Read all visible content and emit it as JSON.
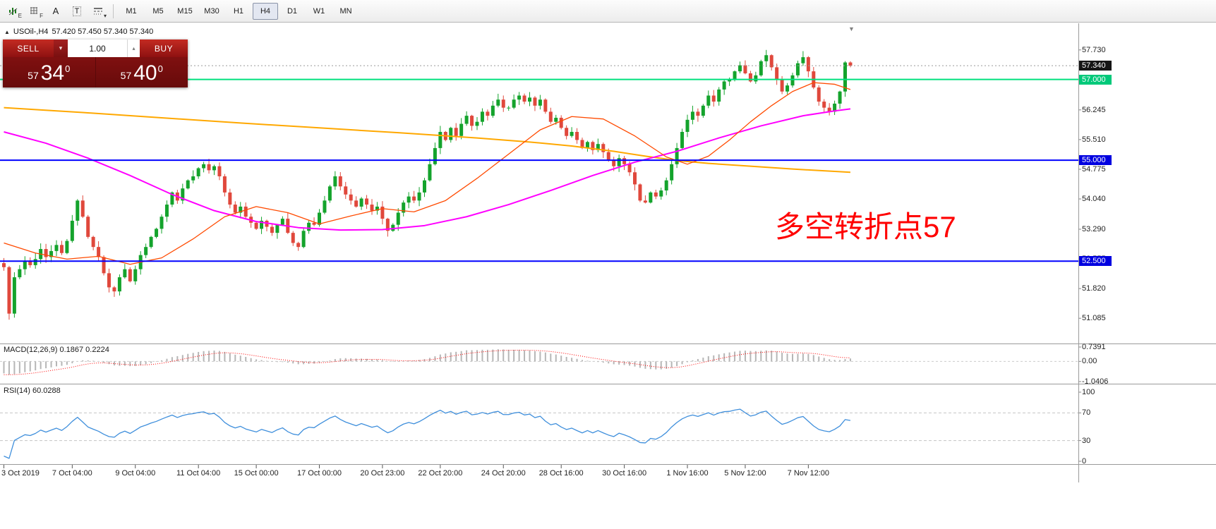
{
  "toolbar": {
    "tools": [
      {
        "name": "chart-objects-tool",
        "kind": "chart",
        "sub": "E"
      },
      {
        "name": "grid-tool",
        "kind": "grid",
        "sub": "F"
      },
      {
        "name": "text-tool",
        "kind": "letter",
        "sub": "A"
      },
      {
        "name": "text-label-tool",
        "kind": "letter-box",
        "sub": "T"
      },
      {
        "name": "line-style-tool",
        "kind": "lines",
        "sub": "▾"
      }
    ],
    "timeframes": [
      {
        "label": "M1"
      },
      {
        "label": "M5"
      },
      {
        "label": "M15"
      },
      {
        "label": "M30"
      },
      {
        "label": "H1"
      },
      {
        "label": "H4"
      },
      {
        "label": "D1"
      },
      {
        "label": "W1"
      },
      {
        "label": "MN"
      }
    ],
    "active_timeframe": "H4"
  },
  "symbol_header": {
    "toggle_icon": "▲",
    "symbol": "USOil-,H4",
    "ohlc": "57.420 57.450 57.340 57.340"
  },
  "trade_panel": {
    "sell_label": "SELL",
    "buy_label": "BUY",
    "volume": "1.00",
    "dropdown_icon": "▾",
    "spinner_icon": "▴",
    "sell_price": {
      "small": "57",
      "big": "34",
      "sup": "0"
    },
    "buy_price": {
      "small": "57",
      "big": "40",
      "sup": "0"
    }
  },
  "annotation": {
    "text": "多空转折点57",
    "color": "#ff0000"
  },
  "chart_overlay": {
    "scroll_marker": "▼"
  },
  "macd_panel": {
    "label": "MACD(12,26,9) 0.1867 0.2224",
    "axis_labels": [
      "0.7391",
      "0.00",
      "-1.0406"
    ]
  },
  "rsi_panel": {
    "label": "RSI(14) 60.0288",
    "axis_labels": [
      "100",
      "70",
      "30",
      "0"
    ]
  },
  "price_scale": {
    "badges": [
      {
        "label": "57.340",
        "value": 57.34,
        "bg": "#151515",
        "type": "last-price"
      },
      {
        "label": "57.000",
        "value": 57.0,
        "bg": "#00c97a",
        "type": "hline-green"
      },
      {
        "label": "55.000",
        "value": 55.0,
        "bg": "#0000e0",
        "type": "hline-blue"
      },
      {
        "label": "52.500",
        "value": 52.5,
        "bg": "#0000e0",
        "type": "hline-blue"
      }
    ]
  },
  "chart_data": {
    "type": "candlestick",
    "symbol": "USOil-",
    "timeframe": "H4",
    "current_bar_ohlc": {
      "open": 57.42,
      "high": 57.45,
      "low": 57.34,
      "close": 57.34
    },
    "y_range": [
      50.46,
      58.39
    ],
    "price_ticks": [
      57.73,
      56.245,
      55.51,
      54.775,
      54.04,
      53.29,
      52.555,
      51.82,
      51.085
    ],
    "closes": [
      52.35,
      51.2,
      52.1,
      52.3,
      52.5,
      52.4,
      52.55,
      52.8,
      52.6,
      52.75,
      52.9,
      52.7,
      53.0,
      53.5,
      54.0,
      53.6,
      53.1,
      52.85,
      52.6,
      52.2,
      51.85,
      51.75,
      52.1,
      52.3,
      52.0,
      52.3,
      52.65,
      52.85,
      53.1,
      53.3,
      53.6,
      53.9,
      54.2,
      54.0,
      54.3,
      54.5,
      54.6,
      54.8,
      54.9,
      54.75,
      54.85,
      54.6,
      54.2,
      53.9,
      53.7,
      53.85,
      53.6,
      53.45,
      53.3,
      53.5,
      53.35,
      53.2,
      53.4,
      53.55,
      53.2,
      52.95,
      52.85,
      53.25,
      53.45,
      53.4,
      53.7,
      54.0,
      54.35,
      54.6,
      54.35,
      54.15,
      54.0,
      53.85,
      54.05,
      53.9,
      53.75,
      53.85,
      53.55,
      53.25,
      53.4,
      53.7,
      53.95,
      54.1,
      54.0,
      54.2,
      54.5,
      54.9,
      55.3,
      55.7,
      55.5,
      55.8,
      55.6,
      55.9,
      56.1,
      55.85,
      55.95,
      56.2,
      56.1,
      56.35,
      56.5,
      56.3,
      56.3,
      56.5,
      56.6,
      56.45,
      56.55,
      56.35,
      56.5,
      56.2,
      55.95,
      56.05,
      55.8,
      55.6,
      55.7,
      55.5,
      55.3,
      55.45,
      55.25,
      55.4,
      55.2,
      55.0,
      54.85,
      55.05,
      54.9,
      54.7,
      54.4,
      54.0,
      53.95,
      54.2,
      54.1,
      54.25,
      54.5,
      54.9,
      55.3,
      55.7,
      56.0,
      56.2,
      56.1,
      56.35,
      56.6,
      56.45,
      56.75,
      56.95,
      57.0,
      57.2,
      57.35,
      57.15,
      56.95,
      57.1,
      57.45,
      57.6,
      57.3,
      57.0,
      56.7,
      56.85,
      57.1,
      57.4,
      57.55,
      57.2,
      56.8,
      56.45,
      56.3,
      56.2,
      56.4,
      56.7,
      57.42,
      57.34
    ],
    "prehistory_closes": [
      56.1,
      55.9,
      55.7,
      55.45,
      55.2,
      55.0,
      54.75,
      54.5,
      54.3,
      54.1,
      53.9,
      53.7,
      53.55,
      53.4,
      53.3,
      53.15,
      53.05,
      52.95,
      52.85,
      52.75,
      52.7,
      52.6,
      52.55,
      52.5,
      52.45,
      52.5,
      52.55,
      52.45,
      52.4,
      52.45
    ],
    "wick_overrides": {
      "1": {
        "low": 51.05
      },
      "2": {
        "low": 51.1
      },
      "145": {
        "high": 57.73
      },
      "152": {
        "high": 57.7
      },
      "161": {
        "high": 57.45,
        "low": 57.3
      }
    },
    "hlines": [
      {
        "value": 57.34,
        "color": "#999999",
        "style": "dotted",
        "name": "last-price-line"
      },
      {
        "value": 57.0,
        "color": "#00e07e",
        "style": "solid",
        "name": "green-level-57"
      },
      {
        "value": 55.0,
        "color": "#0000ff",
        "style": "solid",
        "name": "blue-level-55"
      },
      {
        "value": 52.5,
        "color": "#0000ff",
        "style": "solid",
        "name": "blue-level-52-5"
      }
    ],
    "ma_lines": [
      {
        "name": "ma-slow-orange",
        "color": "#ffa800",
        "width": 2,
        "points": [
          [
            0,
            56.3
          ],
          [
            15,
            56.18
          ],
          [
            30,
            56.05
          ],
          [
            45,
            55.92
          ],
          [
            60,
            55.8
          ],
          [
            75,
            55.68
          ],
          [
            90,
            55.55
          ],
          [
            100,
            55.45
          ],
          [
            108,
            55.35
          ],
          [
            116,
            55.22
          ],
          [
            122,
            55.1
          ],
          [
            128,
            54.99
          ],
          [
            134,
            54.92
          ],
          [
            142,
            54.85
          ],
          [
            150,
            54.78
          ],
          [
            161,
            54.7
          ]
        ]
      },
      {
        "name": "ma-mid-magenta",
        "color": "#ff00ff",
        "width": 2,
        "points": [
          [
            0,
            55.7
          ],
          [
            8,
            55.42
          ],
          [
            16,
            55.05
          ],
          [
            24,
            54.62
          ],
          [
            32,
            54.15
          ],
          [
            40,
            53.75
          ],
          [
            48,
            53.48
          ],
          [
            56,
            53.33
          ],
          [
            64,
            53.27
          ],
          [
            72,
            53.28
          ],
          [
            80,
            53.38
          ],
          [
            88,
            53.6
          ],
          [
            96,
            53.9
          ],
          [
            104,
            54.25
          ],
          [
            112,
            54.62
          ],
          [
            120,
            54.95
          ],
          [
            128,
            55.22
          ],
          [
            136,
            55.55
          ],
          [
            144,
            55.85
          ],
          [
            152,
            56.1
          ],
          [
            158,
            56.22
          ],
          [
            161,
            56.27
          ]
        ]
      },
      {
        "name": "ma-fast-red",
        "color": "#ff4a00",
        "width": 1.3,
        "points": [
          [
            0,
            52.95
          ],
          [
            6,
            52.7
          ],
          [
            12,
            52.55
          ],
          [
            18,
            52.62
          ],
          [
            24,
            52.42
          ],
          [
            30,
            52.58
          ],
          [
            36,
            53.05
          ],
          [
            42,
            53.6
          ],
          [
            48,
            53.85
          ],
          [
            54,
            53.7
          ],
          [
            60,
            53.42
          ],
          [
            66,
            53.62
          ],
          [
            72,
            53.8
          ],
          [
            78,
            53.72
          ],
          [
            84,
            54.0
          ],
          [
            90,
            54.55
          ],
          [
            96,
            55.15
          ],
          [
            102,
            55.75
          ],
          [
            108,
            56.08
          ],
          [
            114,
            56.02
          ],
          [
            120,
            55.6
          ],
          [
            126,
            55.08
          ],
          [
            130,
            54.9
          ],
          [
            134,
            55.1
          ],
          [
            138,
            55.5
          ],
          [
            142,
            55.95
          ],
          [
            146,
            56.35
          ],
          [
            150,
            56.7
          ],
          [
            154,
            56.92
          ],
          [
            158,
            56.88
          ],
          [
            161,
            56.75
          ]
        ]
      }
    ],
    "macd": {
      "fast": 12,
      "slow": 26,
      "signal": 9,
      "current_values": [
        0.1867,
        0.2224
      ],
      "axis_values": [
        0.7391,
        0,
        -1.0406
      ],
      "y_range": [
        -1.0406,
        0.7391
      ]
    },
    "rsi": {
      "period": 14,
      "current_value": 60.0288,
      "levels": [
        70,
        30
      ],
      "axis_values": [
        100,
        70,
        30,
        0
      ],
      "y_range": [
        0,
        100
      ]
    },
    "time_labels": [
      {
        "label": "3 Oct 2019",
        "i": 0
      },
      {
        "label": "7 Oct 04:00",
        "i": 13
      },
      {
        "label": "9 Oct 04:00",
        "i": 25
      },
      {
        "label": "11 Oct 04:00",
        "i": 37
      },
      {
        "label": "15 Oct 00:00",
        "i": 48
      },
      {
        "label": "17 Oct 00:00",
        "i": 60
      },
      {
        "label": "20 Oct 23:00",
        "i": 72
      },
      {
        "label": "22 Oct 20:00",
        "i": 83
      },
      {
        "label": "24 Oct 20:00",
        "i": 95
      },
      {
        "label": "28 Oct 16:00",
        "i": 106
      },
      {
        "label": "30 Oct 16:00",
        "i": 118
      },
      {
        "label": "1 Nov 16:00",
        "i": 130
      },
      {
        "label": "5 Nov 12:00",
        "i": 141
      },
      {
        "label": "7 Nov 12:00",
        "i": 153
      }
    ],
    "colors": {
      "up": "#14a32c",
      "down": "#e0483c",
      "macd_hist": "#b6b6b6",
      "macd_signal": "#ff0000",
      "rsi_line": "#3f8fdc",
      "separator": "#9a9a9a"
    }
  }
}
